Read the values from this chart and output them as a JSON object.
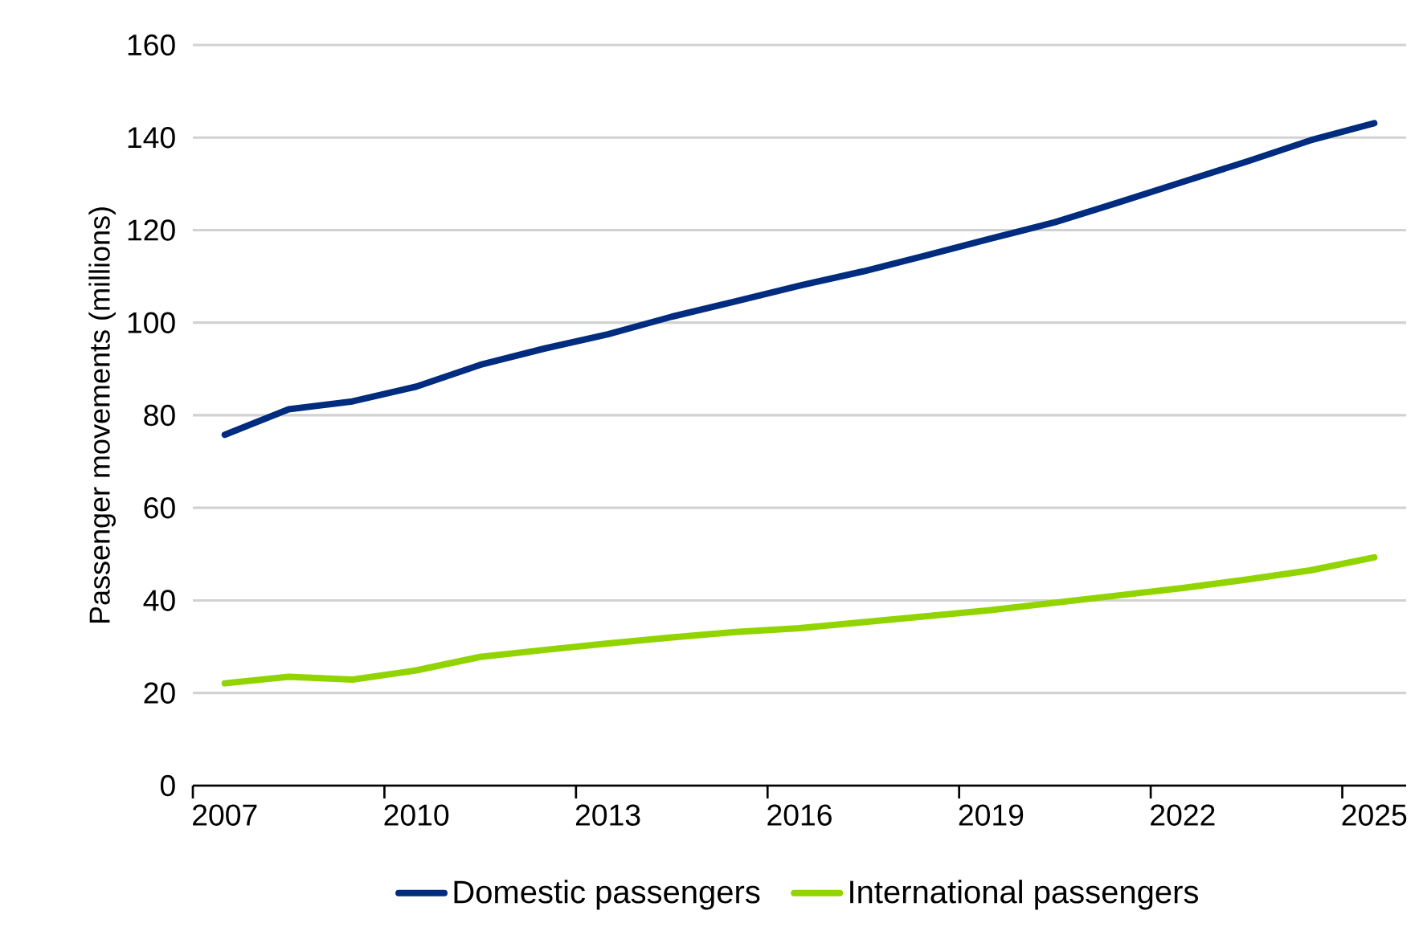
{
  "chart_data": {
    "type": "line",
    "ylabel": "Passenger movements (millions)",
    "categories": [
      "2007",
      null,
      null,
      "2010",
      null,
      null,
      "2013",
      null,
      null,
      "2016",
      null,
      null,
      "2019",
      null,
      null,
      "2022",
      null,
      null,
      "2025"
    ],
    "series": [
      {
        "name": "Domestic passengers",
        "color": "#002c7f",
        "values": [
          75.8,
          81.3,
          83.0,
          86.2,
          90.9,
          94.4,
          97.5,
          101.3,
          104.6,
          108.0,
          111.1,
          114.6,
          118.2,
          121.7,
          126.0,
          130.4,
          134.8,
          139.4,
          143.1
        ]
      },
      {
        "name": "International passengers",
        "color": "#92d400",
        "values": [
          22.1,
          23.5,
          22.9,
          24.9,
          27.8,
          29.3,
          30.7,
          32.0,
          33.2,
          34.0,
          35.3,
          36.6,
          37.9,
          39.5,
          41.1,
          42.7,
          44.5,
          46.5,
          49.3
        ]
      }
    ],
    "ylim": [
      0,
      160
    ],
    "yticks": [
      0,
      20,
      40,
      60,
      80,
      100,
      120,
      140,
      160
    ],
    "grid": "y",
    "legend": "bottom",
    "marker": "none",
    "line_style": "solid"
  }
}
